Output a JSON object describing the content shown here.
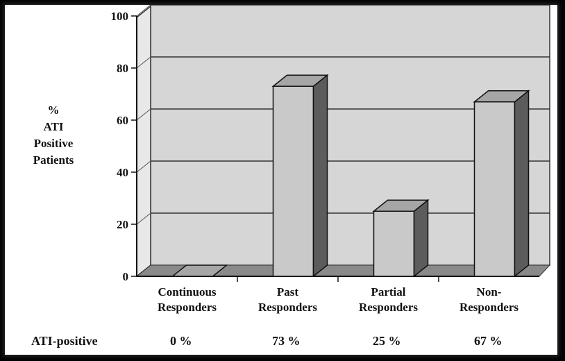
{
  "chart_data": {
    "type": "bar",
    "categories": [
      [
        "Continuous",
        "Responders"
      ],
      [
        "Past",
        "Responders"
      ],
      [
        "Partial",
        "Responders"
      ],
      [
        "Non-",
        "Responders"
      ]
    ],
    "values": [
      0,
      73,
      25,
      67
    ],
    "ylim": [
      0,
      100
    ],
    "yticks": [
      "0",
      "20",
      "40",
      "60",
      "80",
      "100"
    ],
    "ylabel_lines": [
      "%",
      "ATI",
      "Positive",
      "Patients"
    ],
    "grid": true,
    "colors": {
      "bar_front": "#c9c9c9",
      "bar_top": "#a6a6a6",
      "bar_side": "#5c5c5c",
      "back_wall": "#d6d6d6",
      "floor": "#8a8a8a"
    }
  },
  "footer_row": {
    "label": "ATI-positive",
    "values": [
      "0 %",
      "73 %",
      "25 %",
      "67 %"
    ]
  }
}
